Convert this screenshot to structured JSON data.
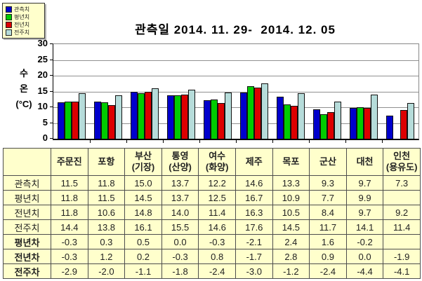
{
  "chart_data": {
    "type": "bar",
    "title": "관측일 2014. 11. 29-  2014. 12. 05",
    "xlabel": "",
    "ylabel": "수온(°C)",
    "ylabel_lines": [
      "수",
      "온",
      "(°C)"
    ],
    "ylim": [
      0,
      30
    ],
    "ytick_step": 5,
    "grid": true,
    "legend_position": "top-left",
    "categories": [
      "주문진",
      "포항",
      "부산(기장)",
      "통영(산양)",
      "여수(화양)",
      "제주",
      "목포",
      "군산",
      "대천",
      "인천(용유도)"
    ],
    "series": [
      {
        "name": "관측치",
        "color": "#0000CC",
        "values": [
          11.5,
          11.8,
          15.0,
          13.7,
          12.2,
          14.6,
          13.3,
          9.3,
          9.7,
          7.3
        ]
      },
      {
        "name": "평년치",
        "color": "#00CC00",
        "values": [
          11.8,
          11.5,
          14.5,
          13.7,
          12.5,
          16.7,
          10.9,
          7.7,
          9.9,
          null
        ]
      },
      {
        "name": "전년치",
        "color": "#DD0000",
        "values": [
          11.8,
          10.6,
          14.8,
          14.0,
          11.4,
          16.3,
          10.5,
          8.4,
          9.7,
          9.2
        ]
      },
      {
        "name": "전주치",
        "color": "#B6DCDA",
        "values": [
          14.4,
          13.8,
          16.1,
          15.5,
          14.6,
          17.6,
          14.5,
          11.7,
          14.1,
          11.4
        ]
      }
    ]
  },
  "y_axis": {
    "ticks": [
      30,
      25,
      20,
      15,
      10,
      5,
      0
    ]
  },
  "legend": {
    "items": [
      {
        "label": "관측치",
        "color": "#0000CC"
      },
      {
        "label": "평년치",
        "color": "#00CC00"
      },
      {
        "label": "전년치",
        "color": "#DD0000"
      },
      {
        "label": "전주치",
        "color": "#B6DCDA"
      }
    ]
  },
  "table": {
    "header": [
      "",
      "주문진",
      "포항",
      "부산\n(기장)",
      "통영\n(산양)",
      "여수\n(화양)",
      "제주",
      "목포",
      "군산",
      "대천",
      "인천\n(용유도)"
    ],
    "rows": [
      {
        "label": "관측치",
        "diff": false,
        "values": [
          "11.5",
          "11.8",
          "15.0",
          "13.7",
          "12.2",
          "14.6",
          "13.3",
          "9.3",
          "9.7",
          "7.3"
        ]
      },
      {
        "label": "평년치",
        "diff": false,
        "values": [
          "11.8",
          "11.5",
          "14.5",
          "13.7",
          "12.5",
          "16.7",
          "10.9",
          "7.7",
          "9.9",
          ""
        ]
      },
      {
        "label": "전년치",
        "diff": false,
        "values": [
          "11.8",
          "10.6",
          "14.8",
          "14.0",
          "11.4",
          "16.3",
          "10.5",
          "8.4",
          "9.7",
          "9.2"
        ]
      },
      {
        "label": "전주치",
        "diff": false,
        "values": [
          "14.4",
          "13.8",
          "16.1",
          "15.5",
          "14.6",
          "17.6",
          "14.5",
          "11.7",
          "14.1",
          "11.4"
        ]
      },
      {
        "label": "평년차",
        "diff": true,
        "values": [
          "-0.3",
          "0.3",
          "0.5",
          "0.0",
          "-0.3",
          "-2.1",
          "2.4",
          "1.6",
          "-0.2",
          ""
        ]
      },
      {
        "label": "전년차",
        "diff": true,
        "values": [
          "-0.3",
          "1.2",
          "0.2",
          "-0.3",
          "0.8",
          "-1.7",
          "2.8",
          "0.9",
          "0.0",
          "-1.9"
        ]
      },
      {
        "label": "전주차",
        "diff": true,
        "values": [
          "-2.9",
          "-2.0",
          "-1.1",
          "-1.8",
          "-2.4",
          "-3.0",
          "-1.2",
          "-2.4",
          "-4.4",
          "-4.1"
        ]
      }
    ]
  },
  "colors": {
    "table_bg": "#FFFFCC",
    "grid_line": "#909090",
    "axis": "#000000",
    "bar_outline": "#111111",
    "text": "#222222"
  }
}
